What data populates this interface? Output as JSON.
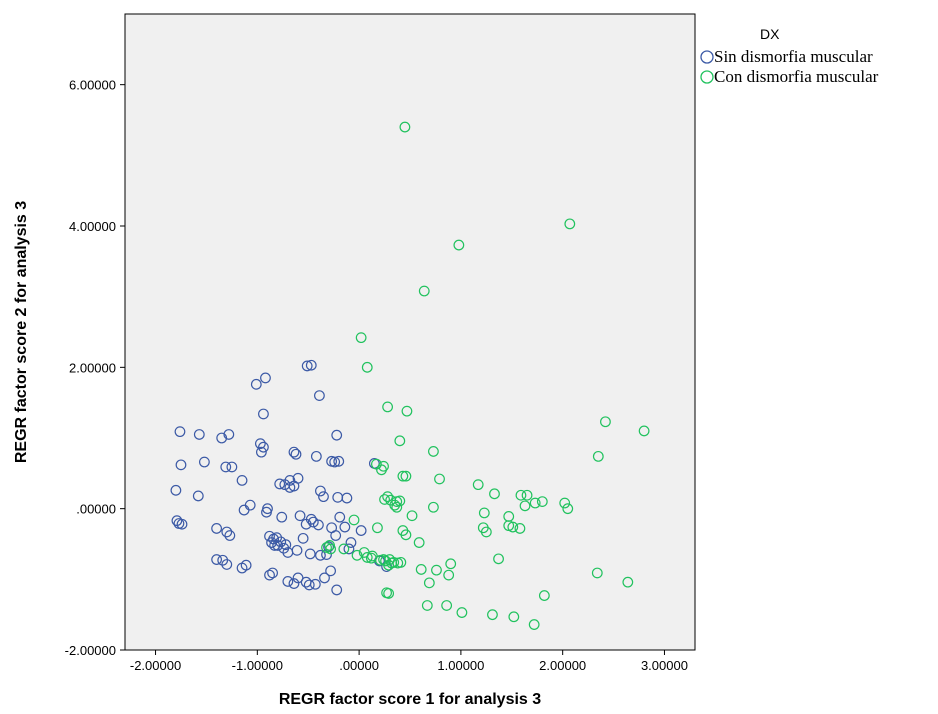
{
  "chart_data": {
    "type": "scatter",
    "xlabel": "REGR factor score   1 for analysis 3",
    "ylabel": "REGR factor score   2 for analysis 3",
    "xlim": [
      -2.3,
      3.3
    ],
    "ylim": [
      -2.0,
      7.0
    ],
    "x_ticks": [
      -2,
      -1,
      0,
      1,
      2,
      3
    ],
    "y_ticks": [
      -2,
      0,
      2,
      4,
      6
    ],
    "x_tick_labels": [
      "-2.00000",
      "-1.00000",
      ".00000",
      "1.00000",
      "2.00000",
      "3.00000"
    ],
    "y_tick_labels": [
      "-2.00000",
      ".00000",
      "2.00000",
      "4.00000",
      "6.00000"
    ],
    "grid": false,
    "legend": {
      "title": "DX",
      "placement": "right-top",
      "entries": [
        "Sin dismorfia muscular",
        "Con dismorfia muscular"
      ]
    },
    "series": [
      {
        "name": "Sin dismorfia muscular",
        "color": "#3c5aa6",
        "points": [
          [
            -1.76,
            1.09
          ],
          [
            -1.57,
            1.05
          ],
          [
            -1.28,
            1.05
          ],
          [
            -1.35,
            1.0
          ],
          [
            -1.75,
            0.62
          ],
          [
            -1.52,
            0.66
          ],
          [
            -1.31,
            0.59
          ],
          [
            -1.25,
            0.59
          ],
          [
            -1.8,
            0.26
          ],
          [
            -1.58,
            0.18
          ],
          [
            -1.79,
            -0.17
          ],
          [
            -1.77,
            -0.21
          ],
          [
            -1.74,
            -0.22
          ],
          [
            -1.4,
            -0.28
          ],
          [
            -1.3,
            -0.33
          ],
          [
            -1.27,
            -0.38
          ],
          [
            -1.4,
            -0.72
          ],
          [
            -1.34,
            -0.73
          ],
          [
            -1.3,
            -0.79
          ],
          [
            -1.11,
            -0.8
          ],
          [
            -1.15,
            -0.84
          ],
          [
            -1.15,
            0.4
          ],
          [
            -1.13,
            -0.02
          ],
          [
            -1.07,
            0.05
          ],
          [
            -1.01,
            1.76
          ],
          [
            -0.92,
            1.85
          ],
          [
            -0.94,
            1.34
          ],
          [
            -0.97,
            0.92
          ],
          [
            -0.94,
            0.87
          ],
          [
            -0.91,
            -0.05
          ],
          [
            -0.9,
            0.0
          ],
          [
            -0.88,
            -0.39
          ],
          [
            -0.86,
            -0.48
          ],
          [
            -0.84,
            -0.43
          ],
          [
            -0.83,
            -0.52
          ],
          [
            -0.81,
            -0.41
          ],
          [
            -0.8,
            -0.52
          ],
          [
            -0.77,
            -0.47
          ],
          [
            -0.76,
            -0.12
          ],
          [
            -0.74,
            -0.56
          ],
          [
            -0.72,
            -0.51
          ],
          [
            -0.7,
            -0.62
          ],
          [
            -0.78,
            0.35
          ],
          [
            -0.73,
            0.34
          ],
          [
            -0.68,
            0.3
          ],
          [
            -0.64,
            0.32
          ],
          [
            -0.64,
            0.8
          ],
          [
            -0.62,
            0.77
          ],
          [
            -0.6,
            0.43
          ],
          [
            -0.61,
            -0.59
          ],
          [
            -0.58,
            -0.1
          ],
          [
            -0.52,
            -0.22
          ],
          [
            -0.47,
            -0.15
          ],
          [
            -0.48,
            -0.64
          ],
          [
            -0.45,
            -0.19
          ],
          [
            -0.4,
            -0.23
          ],
          [
            -0.38,
            -0.66
          ],
          [
            -0.32,
            -0.65
          ],
          [
            -0.27,
            -0.27
          ],
          [
            -0.23,
            -0.38
          ],
          [
            -0.19,
            -0.12
          ],
          [
            -0.14,
            -0.26
          ],
          [
            -0.7,
            -1.03
          ],
          [
            -0.64,
            -1.06
          ],
          [
            -0.6,
            -0.98
          ],
          [
            -0.52,
            -1.04
          ],
          [
            -0.49,
            -1.08
          ],
          [
            -0.43,
            -1.07
          ],
          [
            -0.34,
            -0.98
          ],
          [
            -0.28,
            -0.88
          ],
          [
            -0.22,
            -1.15
          ],
          [
            -0.88,
            -0.94
          ],
          [
            -0.85,
            -0.91
          ],
          [
            -0.51,
            2.02
          ],
          [
            -0.47,
            2.03
          ],
          [
            -0.39,
            1.6
          ],
          [
            -0.42,
            0.74
          ],
          [
            -0.38,
            0.25
          ],
          [
            -0.35,
            0.17
          ],
          [
            -0.27,
            0.67
          ],
          [
            -0.24,
            0.66
          ],
          [
            -0.22,
            1.04
          ],
          [
            -0.2,
            0.67
          ],
          [
            -0.21,
            0.16
          ],
          [
            -0.12,
            0.15
          ],
          [
            -0.1,
            -0.57
          ],
          [
            -0.08,
            -0.48
          ],
          [
            0.02,
            -0.31
          ],
          [
            0.15,
            0.64
          ],
          [
            0.2,
            -0.74
          ],
          [
            0.27,
            -0.82
          ],
          [
            -0.96,
            0.8
          ],
          [
            -0.68,
            0.4
          ],
          [
            -0.55,
            -0.42
          ],
          [
            -0.3,
            -0.54
          ]
        ]
      },
      {
        "name": "Con dismorfia muscular",
        "color": "#21c25e",
        "points": [
          [
            0.45,
            5.4
          ],
          [
            2.07,
            4.03
          ],
          [
            0.98,
            3.73
          ],
          [
            0.64,
            3.08
          ],
          [
            0.02,
            2.42
          ],
          [
            0.08,
            2.0
          ],
          [
            0.28,
            1.44
          ],
          [
            0.47,
            1.38
          ],
          [
            2.42,
            1.23
          ],
          [
            2.8,
            1.1
          ],
          [
            0.4,
            0.96
          ],
          [
            0.73,
            0.81
          ],
          [
            2.35,
            0.74
          ],
          [
            0.17,
            0.63
          ],
          [
            0.24,
            0.6
          ],
          [
            0.22,
            0.55
          ],
          [
            0.46,
            0.46
          ],
          [
            0.43,
            0.46
          ],
          [
            0.79,
            0.42
          ],
          [
            1.17,
            0.34
          ],
          [
            1.33,
            0.21
          ],
          [
            1.59,
            0.19
          ],
          [
            1.65,
            0.19
          ],
          [
            1.8,
            0.1
          ],
          [
            1.73,
            0.08
          ],
          [
            1.63,
            0.04
          ],
          [
            2.02,
            0.08
          ],
          [
            2.05,
            0.0
          ],
          [
            0.28,
            0.17
          ],
          [
            0.25,
            0.13
          ],
          [
            0.31,
            0.12
          ],
          [
            0.37,
            0.1
          ],
          [
            0.4,
            0.11
          ],
          [
            0.35,
            0.05
          ],
          [
            0.37,
            0.02
          ],
          [
            0.73,
            0.02
          ],
          [
            0.52,
            -0.1
          ],
          [
            1.23,
            -0.06
          ],
          [
            1.47,
            -0.11
          ],
          [
            1.47,
            -0.24
          ],
          [
            1.51,
            -0.26
          ],
          [
            1.58,
            -0.28
          ],
          [
            1.22,
            -0.27
          ],
          [
            1.25,
            -0.33
          ],
          [
            0.43,
            -0.31
          ],
          [
            0.46,
            -0.37
          ],
          [
            -0.05,
            -0.16
          ],
          [
            0.18,
            -0.27
          ],
          [
            0.59,
            -0.48
          ],
          [
            -0.29,
            -0.52
          ],
          [
            -0.32,
            -0.55
          ],
          [
            -0.28,
            -0.57
          ],
          [
            -0.15,
            -0.57
          ],
          [
            0.05,
            -0.62
          ],
          [
            0.08,
            -0.69
          ],
          [
            0.12,
            -0.7
          ],
          [
            0.24,
            -0.72
          ],
          [
            0.26,
            -0.74
          ],
          [
            0.3,
            -0.72
          ],
          [
            0.32,
            -0.77
          ],
          [
            0.34,
            -0.76
          ],
          [
            0.38,
            -0.77
          ],
          [
            0.41,
            -0.76
          ],
          [
            0.61,
            -0.86
          ],
          [
            0.76,
            -0.87
          ],
          [
            0.88,
            -0.94
          ],
          [
            0.9,
            -0.78
          ],
          [
            0.69,
            -1.05
          ],
          [
            1.37,
            -0.71
          ],
          [
            0.67,
            -1.37
          ],
          [
            0.86,
            -1.37
          ],
          [
            1.01,
            -1.47
          ],
          [
            1.31,
            -1.5
          ],
          [
            1.52,
            -1.53
          ],
          [
            1.72,
            -1.64
          ],
          [
            1.82,
            -1.23
          ],
          [
            2.34,
            -0.91
          ],
          [
            2.64,
            -1.04
          ],
          [
            0.27,
            -1.19
          ],
          [
            0.29,
            -1.2
          ],
          [
            0.13,
            -0.67
          ],
          [
            -0.02,
            -0.66
          ],
          [
            0.21,
            -0.73
          ],
          [
            0.29,
            -0.8
          ]
        ]
      }
    ]
  }
}
